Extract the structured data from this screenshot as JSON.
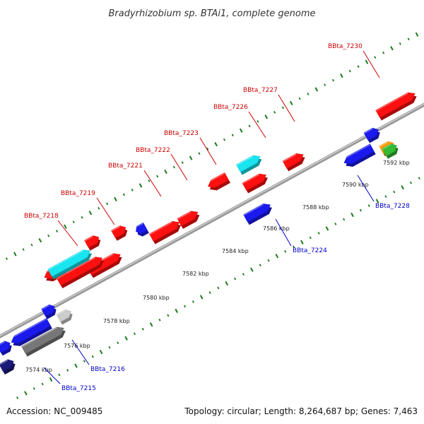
{
  "title": "Bradyrhizobium sp. BTAi1, complete genome",
  "footer": {
    "accession": "Accession: NC_009485",
    "summary": "Topology: circular; Length: 8,264,687 bp; Genes: 7,463"
  },
  "colors": {
    "forward_label": "#cc0000",
    "reverse_label": "#0000cc",
    "backbone": "#999999",
    "tick": "#1a7a1a",
    "gene_red": "#ff1010",
    "gene_blue": "#1a1aee",
    "gene_cyan": "#19e5f0",
    "gene_gray": "#777777",
    "gene_lightgray": "#cccccc",
    "gene_navy": "#1a1a77",
    "gene_orange": "#ff9900",
    "gene_green": "#33bb33"
  },
  "axis": {
    "unit": "kbp",
    "ticks": [
      {
        "kbp": 7574,
        "label": "7574 kbp"
      },
      {
        "kbp": 7576,
        "label": "7576 kbp"
      },
      {
        "kbp": 7578,
        "label": "7578 kbp"
      },
      {
        "kbp": 7580,
        "label": "7580 kbp"
      },
      {
        "kbp": 7582,
        "label": "7582 kbp"
      },
      {
        "kbp": 7584,
        "label": "7584 kbp"
      },
      {
        "kbp": 7586,
        "label": "7586 kbp"
      },
      {
        "kbp": 7588,
        "label": "7588 kbp"
      },
      {
        "kbp": 7590,
        "label": "7590 kbp"
      },
      {
        "kbp": 7592,
        "label": "7592 kbp"
      }
    ]
  },
  "labels": [
    {
      "text": "BBta_7218",
      "strand": "forward"
    },
    {
      "text": "BBta_7219",
      "strand": "forward"
    },
    {
      "text": "BBta_7221",
      "strand": "forward"
    },
    {
      "text": "BBta_7222",
      "strand": "forward"
    },
    {
      "text": "BBta_7223",
      "strand": "forward"
    },
    {
      "text": "BBta_7226",
      "strand": "forward"
    },
    {
      "text": "BBta_7227",
      "strand": "forward"
    },
    {
      "text": "BBta_7230",
      "strand": "forward"
    },
    {
      "text": "BBta_7215",
      "strand": "reverse"
    },
    {
      "text": "BBta_7216",
      "strand": "reverse"
    },
    {
      "text": "BBta_7224",
      "strand": "reverse"
    },
    {
      "text": "BBta_7228",
      "strand": "reverse"
    }
  ]
}
